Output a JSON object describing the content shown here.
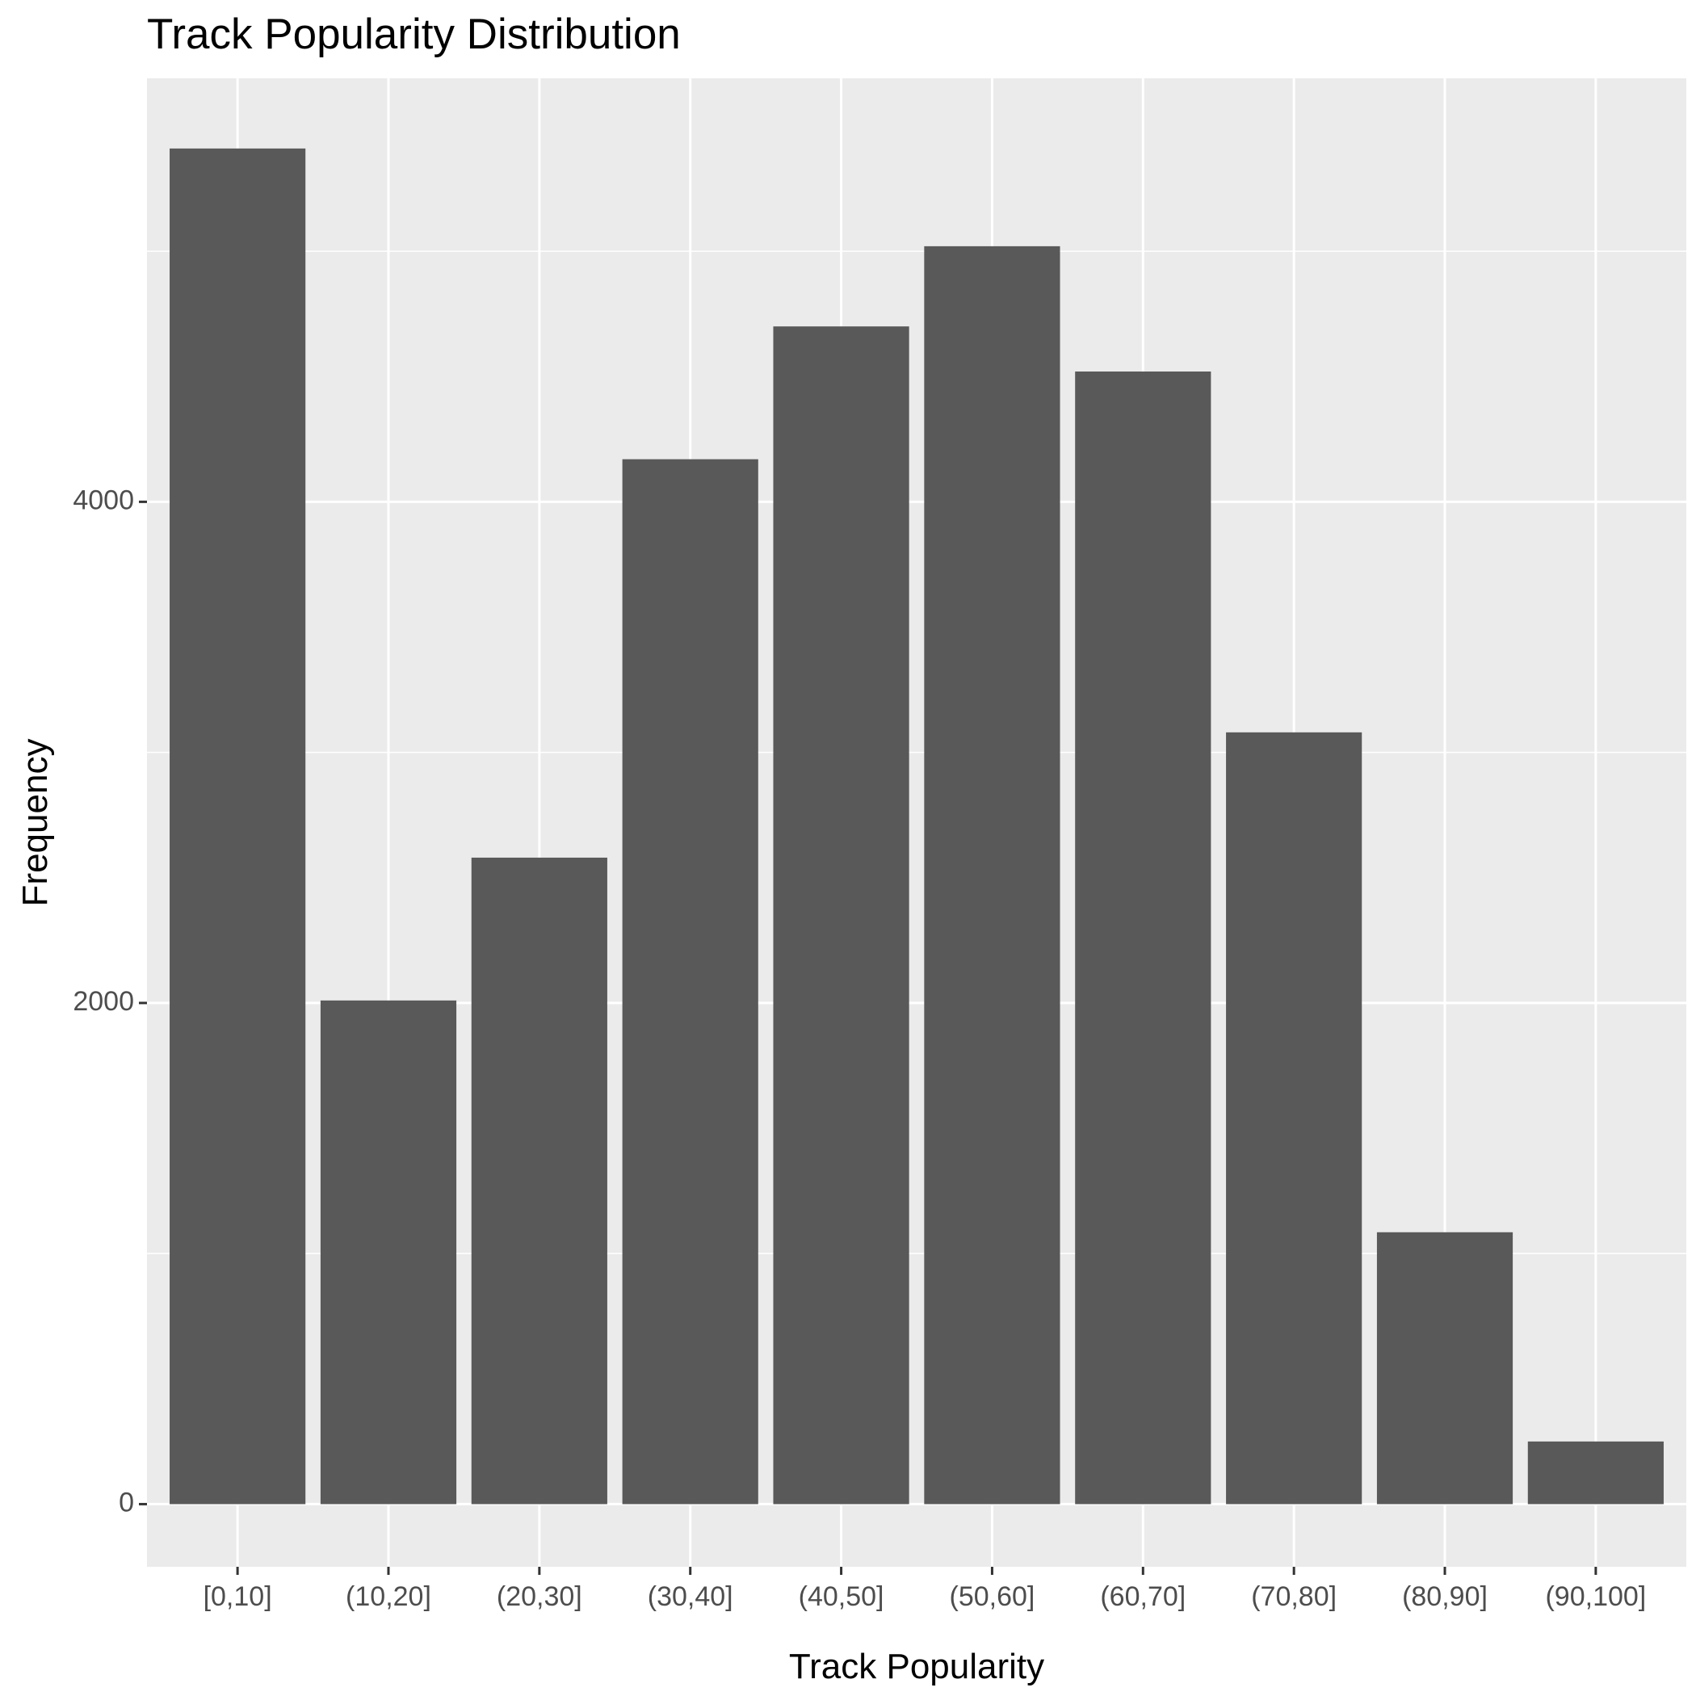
{
  "chart_data": {
    "type": "bar",
    "title": "Track Popularity Distribution",
    "xlabel": "Track Popularity",
    "ylabel": "Frequency",
    "categories": [
      "[0,10]",
      "(10,20]",
      "(20,30]",
      "(30,40]",
      "(40,50]",
      "(50,60]",
      "(60,70]",
      "(70,80]",
      "(80,90]",
      "(90,100]"
    ],
    "values": [
      5410,
      2010,
      2580,
      4170,
      4700,
      5020,
      4520,
      3080,
      1085,
      250
    ],
    "ylim": [
      -250,
      5690
    ],
    "yticks": [
      0,
      2000,
      4000
    ],
    "grid": true,
    "legend": "none",
    "colors": {
      "bar": "#595959",
      "panel": "#ebebeb",
      "grid": "#ffffff",
      "tick": "#333333"
    }
  }
}
